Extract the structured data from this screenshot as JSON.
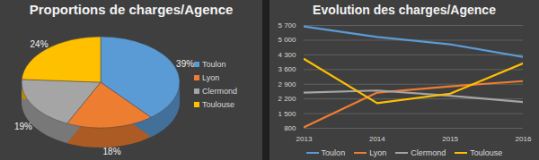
{
  "chart_data": [
    {
      "type": "pie",
      "title": "Proportions de charges/Agence",
      "categories": [
        "Toulon",
        "Lyon",
        "Clermond",
        "Toulouse"
      ],
      "values": [
        39,
        18,
        19,
        24
      ],
      "value_labels": [
        "39%",
        "18%",
        "19%",
        "24%"
      ],
      "colors": [
        "#5b9bd5",
        "#ed7d31",
        "#a5a5a5",
        "#ffc000"
      ],
      "data_labels": true,
      "legend": "right"
    },
    {
      "type": "line",
      "title": "Evolution des charges/Agence",
      "x": [
        2013,
        2014,
        2015,
        2016
      ],
      "series": [
        {
          "name": "Toulon",
          "color": "#5b9bd5",
          "values": [
            5650,
            5150,
            4800,
            4200
          ]
        },
        {
          "name": "Lyon",
          "color": "#ed7d31",
          "values": [
            850,
            2500,
            2800,
            3050
          ]
        },
        {
          "name": "Clermond",
          "color": "#a5a5a5",
          "values": [
            2500,
            2600,
            2350,
            2050
          ]
        },
        {
          "name": "Toulouse",
          "color": "#ffc000",
          "values": [
            4100,
            2000,
            2450,
            3900
          ]
        }
      ],
      "xlim": [
        2013,
        2016
      ],
      "xticks": [
        2013,
        2014,
        2015,
        2016
      ],
      "ylim": [
        800,
        5700
      ],
      "yticks": [
        800,
        {
          "value": 1500,
          "label": "1 500"
        },
        {
          "value": 2200,
          "label": "2 200"
        },
        {
          "value": 2900,
          "label": "2 900"
        },
        {
          "value": 3600,
          "label": "3 600"
        },
        {
          "value": 4300,
          "label": "4 300"
        },
        {
          "value": 5000,
          "label": "5 000"
        },
        {
          "value": 5700,
          "label": "5 700"
        }
      ],
      "grid": true,
      "legend": "bottom"
    }
  ]
}
